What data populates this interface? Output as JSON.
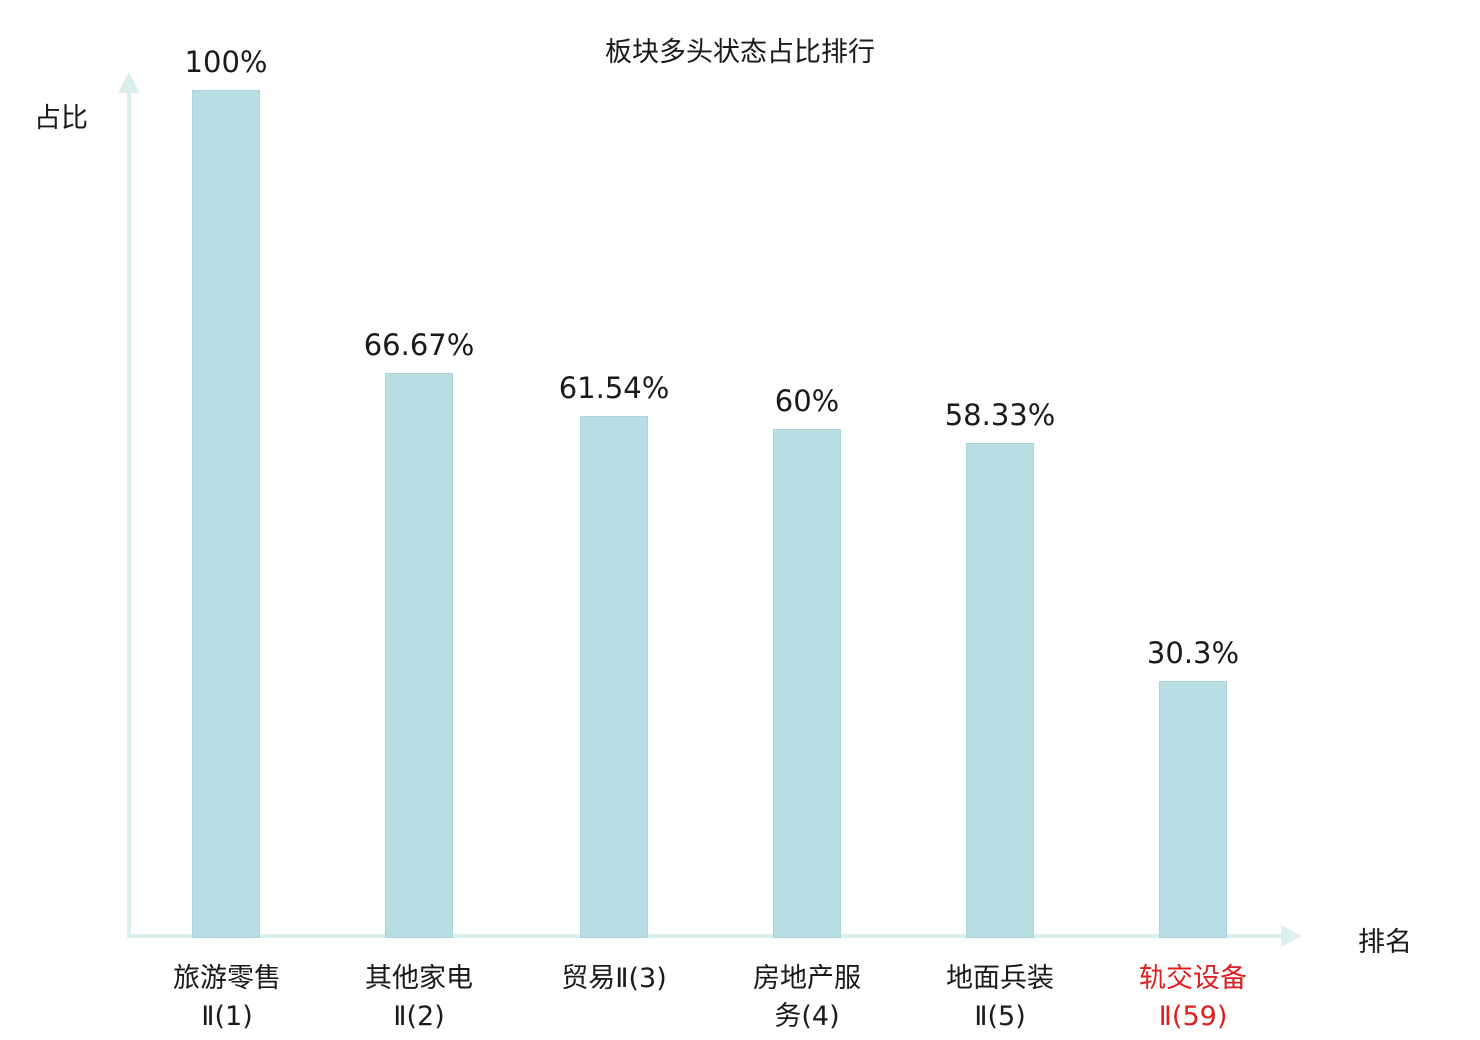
{
  "title": "板块多头状态占比排行",
  "y_axis_label": "占比",
  "x_axis_label": "排名",
  "colors": {
    "bar": "#b8dde2",
    "bar_border": "#a8d4da",
    "axis": "#daf0ee",
    "text": "#1a1a1a",
    "highlight": "#e02020"
  },
  "chart_data": {
    "type": "bar",
    "title": "板块多头状态占比排行",
    "xlabel": "排名",
    "ylabel": "占比",
    "ylim": [
      0,
      100
    ],
    "grid": false,
    "legend": false,
    "categories": [
      "旅游零售Ⅱ(1)",
      "其他家电Ⅱ(2)",
      "贸易Ⅱ(3)",
      "房地产服务(4)",
      "地面兵装Ⅱ(5)",
      "轨交设备Ⅱ(59)"
    ],
    "values": [
      100,
      66.67,
      61.54,
      60,
      58.33,
      30.3
    ],
    "bars": [
      {
        "category": "旅游零售Ⅱ(1)",
        "label_line1": "旅游零售",
        "label_line2": "Ⅱ(1)",
        "value": 100,
        "value_label": "100%",
        "highlighted": false
      },
      {
        "category": "其他家电Ⅱ(2)",
        "label_line1": "其他家电",
        "label_line2": "Ⅱ(2)",
        "value": 66.67,
        "value_label": "66.67%",
        "highlighted": false
      },
      {
        "category": "贸易Ⅱ(3)",
        "label_line1": "贸易Ⅱ(3)",
        "label_line2": "",
        "value": 61.54,
        "value_label": "61.54%",
        "highlighted": false
      },
      {
        "category": "房地产服务(4)",
        "label_line1": "房地产服",
        "label_line2": "务(4)",
        "value": 60,
        "value_label": "60%",
        "highlighted": false
      },
      {
        "category": "地面兵装Ⅱ(5)",
        "label_line1": "地面兵装",
        "label_line2": "Ⅱ(5)",
        "value": 58.33,
        "value_label": "58.33%",
        "highlighted": false
      },
      {
        "category": "轨交设备Ⅱ(59)",
        "label_line1": "轨交设备",
        "label_line2": "Ⅱ(59)",
        "value": 30.3,
        "value_label": "30.3%",
        "highlighted": true
      }
    ]
  }
}
